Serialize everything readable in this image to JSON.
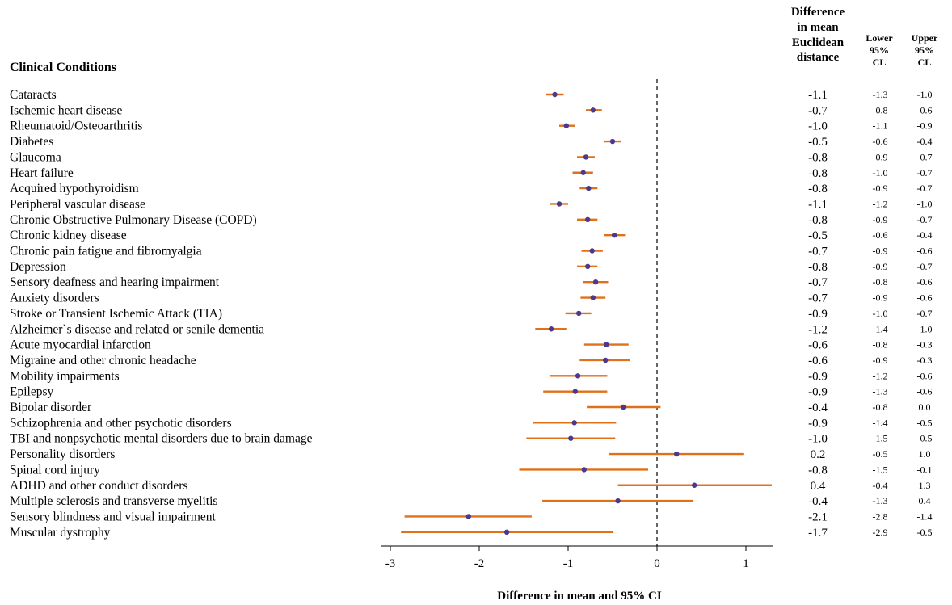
{
  "headers": {
    "condition": "Clinical Conditions",
    "diff_lines": [
      "Difference",
      "in mean",
      "Euclidean",
      "distance"
    ],
    "lower_lines": [
      "Lower",
      "95%",
      "CL"
    ],
    "upper_lines": [
      "Upper",
      "95%",
      "CL"
    ]
  },
  "chart_data": {
    "type": "forest",
    "xlabel": "Difference in mean and 95% CI",
    "xlim": [
      -3.1,
      1.3
    ],
    "xticks": [
      -3,
      -2,
      -1,
      0,
      1
    ],
    "reference_line": 0,
    "colors": {
      "ci": "#E0711A",
      "point": "#4B3A8C"
    },
    "rows": [
      {
        "label": "Cataracts",
        "est": -1.15,
        "lo": -1.25,
        "hi": -1.05,
        "diff": "-1.1",
        "lower": "-1.3",
        "upper": "-1.0"
      },
      {
        "label": "Ischemic heart disease",
        "est": -0.72,
        "lo": -0.8,
        "hi": -0.62,
        "diff": "-0.7",
        "lower": "-0.8",
        "upper": "-0.6"
      },
      {
        "label": "Rheumatoid/Osteoarthritis",
        "est": -1.02,
        "lo": -1.1,
        "hi": -0.92,
        "diff": "-1.0",
        "lower": "-1.1",
        "upper": "-0.9"
      },
      {
        "label": "Diabetes",
        "est": -0.5,
        "lo": -0.6,
        "hi": -0.4,
        "diff": "-0.5",
        "lower": "-0.6",
        "upper": "-0.4"
      },
      {
        "label": "Glaucoma",
        "est": -0.8,
        "lo": -0.9,
        "hi": -0.7,
        "diff": "-0.8",
        "lower": "-0.9",
        "upper": "-0.7"
      },
      {
        "label": "Heart failure",
        "est": -0.83,
        "lo": -0.95,
        "hi": -0.72,
        "diff": "-0.8",
        "lower": "-1.0",
        "upper": "-0.7"
      },
      {
        "label": "Acquired hypothyroidism",
        "est": -0.77,
        "lo": -0.87,
        "hi": -0.67,
        "diff": "-0.8",
        "lower": "-0.9",
        "upper": "-0.7"
      },
      {
        "label": "Peripheral vascular disease",
        "est": -1.1,
        "lo": -1.2,
        "hi": -1.0,
        "diff": "-1.1",
        "lower": "-1.2",
        "upper": "-1.0"
      },
      {
        "label": "Chronic Obstructive Pulmonary Disease (COPD)",
        "est": -0.78,
        "lo": -0.9,
        "hi": -0.67,
        "diff": "-0.8",
        "lower": "-0.9",
        "upper": "-0.7"
      },
      {
        "label": "Chronic kidney disease",
        "est": -0.48,
        "lo": -0.6,
        "hi": -0.36,
        "diff": "-0.5",
        "lower": "-0.6",
        "upper": "-0.4"
      },
      {
        "label": "Chronic pain fatigue and fibromyalgia",
        "est": -0.73,
        "lo": -0.85,
        "hi": -0.61,
        "diff": "-0.7",
        "lower": "-0.9",
        "upper": "-0.6"
      },
      {
        "label": "Depression",
        "est": -0.78,
        "lo": -0.9,
        "hi": -0.67,
        "diff": "-0.8",
        "lower": "-0.9",
        "upper": "-0.7"
      },
      {
        "label": "Sensory deafness and hearing impairment",
        "est": -0.69,
        "lo": -0.83,
        "hi": -0.55,
        "diff": "-0.7",
        "lower": "-0.8",
        "upper": "-0.6"
      },
      {
        "label": "Anxiety disorders",
        "est": -0.72,
        "lo": -0.86,
        "hi": -0.58,
        "diff": "-0.7",
        "lower": "-0.9",
        "upper": "-0.6"
      },
      {
        "label": "Stroke or Transient Ischemic Attack (TIA)",
        "est": -0.88,
        "lo": -1.03,
        "hi": -0.74,
        "diff": "-0.9",
        "lower": "-1.0",
        "upper": "-0.7"
      },
      {
        "label": "Alzheimer`s disease and related or senile dementia",
        "est": -1.19,
        "lo": -1.37,
        "hi": -1.02,
        "diff": "-1.2",
        "lower": "-1.4",
        "upper": "-1.0"
      },
      {
        "label": "Acute myocardial infarction",
        "est": -0.57,
        "lo": -0.82,
        "hi": -0.32,
        "diff": "-0.6",
        "lower": "-0.8",
        "upper": "-0.3"
      },
      {
        "label": "Migraine and other chronic headache",
        "est": -0.58,
        "lo": -0.87,
        "hi": -0.3,
        "diff": "-0.6",
        "lower": "-0.9",
        "upper": "-0.3"
      },
      {
        "label": "Mobility impairments",
        "est": -0.89,
        "lo": -1.21,
        "hi": -0.56,
        "diff": "-0.9",
        "lower": "-1.2",
        "upper": "-0.6"
      },
      {
        "label": "Epilepsy",
        "est": -0.92,
        "lo": -1.28,
        "hi": -0.56,
        "diff": "-0.9",
        "lower": "-1.3",
        "upper": "-0.6"
      },
      {
        "label": "Bipolar disorder",
        "est": -0.38,
        "lo": -0.79,
        "hi": 0.04,
        "diff": "-0.4",
        "lower": "-0.8",
        "upper": "0.0"
      },
      {
        "label": "Schizophrenia and other psychotic disorders",
        "est": -0.93,
        "lo": -1.4,
        "hi": -0.46,
        "diff": "-0.9",
        "lower": "-1.4",
        "upper": "-0.5"
      },
      {
        "label": "TBI and nonpsychotic mental disorders due to brain damage",
        "est": -0.97,
        "lo": -1.47,
        "hi": -0.47,
        "diff": "-1.0",
        "lower": "-1.5",
        "upper": "-0.5"
      },
      {
        "label": "Personality disorders",
        "est": 0.22,
        "lo": -0.54,
        "hi": 0.98,
        "diff": "0.2",
        "lower": "-0.5",
        "upper": "1.0"
      },
      {
        "label": "Spinal cord injury",
        "est": -0.82,
        "lo": -1.55,
        "hi": -0.1,
        "diff": "-0.8",
        "lower": "-1.5",
        "upper": "-0.1"
      },
      {
        "label": "ADHD and other conduct disorders",
        "est": 0.42,
        "lo": -0.44,
        "hi": 1.29,
        "diff": "0.4",
        "lower": "-0.4",
        "upper": "1.3"
      },
      {
        "label": "Multiple sclerosis and transverse myelitis",
        "est": -0.44,
        "lo": -1.29,
        "hi": 0.41,
        "diff": "-0.4",
        "lower": "-1.3",
        "upper": "0.4"
      },
      {
        "label": "Sensory blindness and visual impairment",
        "est": -2.12,
        "lo": -2.84,
        "hi": -1.41,
        "diff": "-2.1",
        "lower": "-2.8",
        "upper": "-1.4"
      },
      {
        "label": "Muscular dystrophy",
        "est": -1.69,
        "lo": -2.88,
        "hi": -0.49,
        "diff": "-1.7",
        "lower": "-2.9",
        "upper": "-0.5"
      }
    ]
  }
}
